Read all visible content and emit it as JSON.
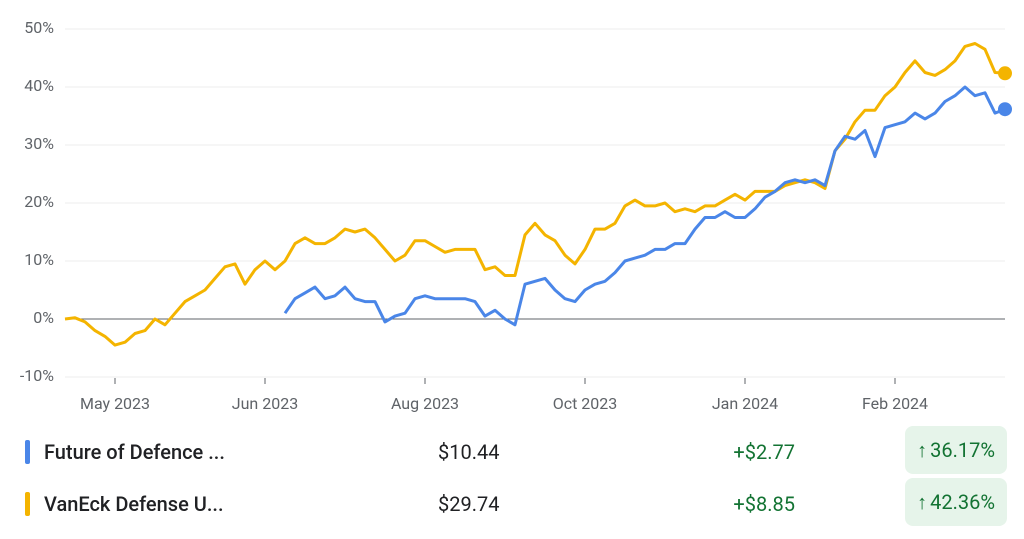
{
  "chart_data": {
    "type": "line",
    "categories": [
      null,
      null,
      null,
      null,
      null,
      "May 2023",
      null,
      null,
      null,
      null,
      null,
      null,
      null,
      null,
      null,
      null,
      null,
      null,
      null,
      null,
      "Jun 2023",
      null,
      null,
      null,
      null,
      null,
      null,
      null,
      null,
      null,
      null,
      null,
      null,
      null,
      null,
      null,
      "Aug 2023",
      null,
      null,
      null,
      null,
      null,
      null,
      null,
      null,
      null,
      null,
      null,
      null,
      null,
      null,
      null,
      "Oct 2023",
      null,
      null,
      null,
      null,
      null,
      null,
      null,
      null,
      null,
      null,
      null,
      null,
      null,
      null,
      null,
      "Jan 2024",
      null,
      null,
      null,
      null,
      null,
      null,
      null,
      null,
      null,
      null,
      null,
      null,
      null,
      null,
      "Feb 2024",
      null,
      null,
      null,
      null,
      null,
      null,
      null,
      null,
      null,
      null,
      null
    ],
    "ylim": [
      -10,
      50
    ],
    "yticks": [
      {
        "value": -10,
        "label": "-10%"
      },
      {
        "value": 0,
        "label": "0%"
      },
      {
        "value": 10,
        "label": "10%"
      },
      {
        "value": 20,
        "label": "20%"
      },
      {
        "value": 30,
        "label": "30%"
      },
      {
        "value": 40,
        "label": "40%"
      },
      {
        "value": 50,
        "label": "50%"
      }
    ],
    "grid": true,
    "series": [
      {
        "name": "Future of Defence ...",
        "color": "#4a86e8",
        "price": "$10.44",
        "change": "+$2.77",
        "percent": "36.17%",
        "values": [
          null,
          null,
          null,
          null,
          null,
          null,
          null,
          null,
          null,
          null,
          null,
          null,
          null,
          null,
          null,
          null,
          null,
          null,
          null,
          null,
          null,
          null,
          1,
          3.5,
          4.5,
          5.5,
          3.5,
          4,
          5.5,
          3.5,
          3,
          3,
          -0.5,
          0.5,
          1,
          3.5,
          4,
          3.5,
          3.5,
          3.5,
          3.5,
          3,
          0.5,
          1.5,
          0,
          -1,
          6,
          6.5,
          7,
          5,
          3.5,
          3,
          5,
          6,
          6.5,
          8,
          10,
          10.5,
          11,
          12,
          12,
          13,
          13,
          15.5,
          17.5,
          17.5,
          18.5,
          17.5,
          17.5,
          19,
          21,
          22,
          23.5,
          24,
          23.5,
          24,
          23,
          29,
          31.5,
          31,
          32.5,
          28,
          33,
          33.5,
          34,
          35.5,
          34.5,
          35.5,
          37.5,
          38.5,
          40,
          38.5,
          39,
          35.5,
          36.17
        ]
      },
      {
        "name": "VanEck Defense U...",
        "color": "#f4b400",
        "price": "$29.74",
        "change": "+$8.85",
        "percent": "42.36%",
        "values": [
          0,
          0.2,
          -0.5,
          -2,
          -3,
          -4.5,
          -4,
          -2.5,
          -2,
          0,
          -1,
          1,
          3,
          4,
          5,
          7,
          9,
          9.5,
          6,
          8.5,
          10,
          8.5,
          10,
          13,
          14,
          13,
          13,
          14,
          15.5,
          15,
          15.5,
          14,
          12,
          10,
          11,
          13.5,
          13.5,
          12.5,
          11.5,
          12,
          12,
          12,
          8.5,
          9,
          7.5,
          7.5,
          14.5,
          16.5,
          14.5,
          13.5,
          11,
          9.5,
          12,
          15.5,
          15.5,
          16.5,
          19.5,
          20.5,
          19.5,
          19.5,
          20,
          18.5,
          19,
          18.5,
          19.5,
          19.5,
          20.5,
          21.5,
          20.5,
          22,
          22,
          22,
          23,
          23.5,
          24,
          23.5,
          22.5,
          29,
          31,
          34,
          36,
          36,
          38.5,
          40,
          42.5,
          44.5,
          42.5,
          42,
          43,
          44.5,
          47,
          47.5,
          46.5,
          42.5,
          42.36
        ]
      }
    ]
  }
}
